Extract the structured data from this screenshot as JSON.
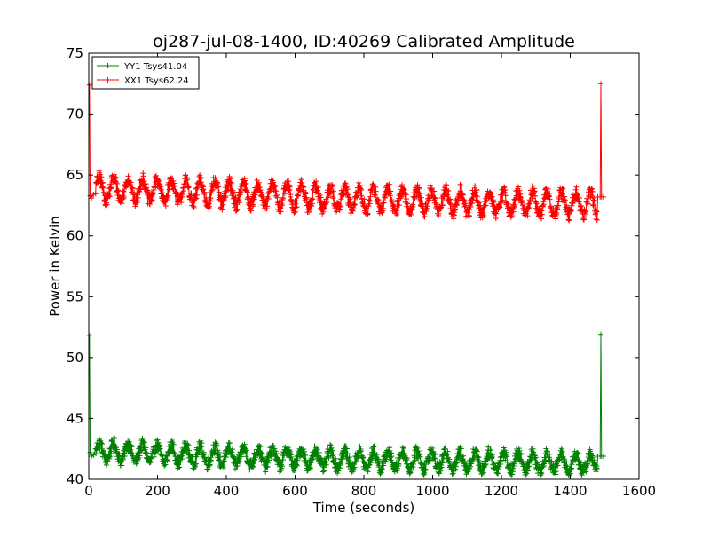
{
  "chart_data": {
    "type": "line",
    "title": "oj287-jul-08-1400, ID:40269 Calibrated Amplitude",
    "xlabel": "Time (seconds)",
    "ylabel": "Power in Kelvin",
    "xlim": [
      0,
      1600
    ],
    "ylim": [
      40,
      75
    ],
    "x_ticks": [
      0,
      200,
      400,
      600,
      800,
      1000,
      1200,
      1400,
      1600
    ],
    "y_ticks": [
      40,
      45,
      50,
      55,
      60,
      65,
      70,
      75
    ],
    "grid": false,
    "legend_position": "top-left",
    "marker": "plus",
    "series": [
      {
        "name": "YY1 Tsys41.04",
        "color": "#008000",
        "oscillation_period": 42,
        "oscillation_half_amplitude": 0.7,
        "noise_half_width": 0.5,
        "oscillation_start": 20,
        "oscillation_end": 1478,
        "baseline": [
          {
            "x": 20,
            "y": 42.3
          },
          {
            "x": 400,
            "y": 41.9
          },
          {
            "x": 800,
            "y": 41.6
          },
          {
            "x": 1200,
            "y": 41.5
          },
          {
            "x": 1478,
            "y": 41.3
          }
        ],
        "start_points": [
          {
            "x": 2,
            "y": 51.8
          },
          {
            "x": 4,
            "y": 42.2
          },
          {
            "x": 8,
            "y": 41.9
          },
          {
            "x": 14,
            "y": 42.0
          }
        ],
        "end_points": [
          {
            "x": 1480,
            "y": 41.9
          },
          {
            "x": 1487,
            "y": 41.9
          },
          {
            "x": 1489,
            "y": 51.9
          },
          {
            "x": 1491,
            "y": 41.9
          },
          {
            "x": 1497,
            "y": 41.9
          }
        ]
      },
      {
        "name": "XX1 Tsys62.24",
        "color": "#ff0000",
        "oscillation_period": 42,
        "oscillation_half_amplitude": 0.9,
        "noise_half_width": 0.55,
        "oscillation_start": 20,
        "oscillation_end": 1478,
        "baseline": [
          {
            "x": 20,
            "y": 63.9
          },
          {
            "x": 400,
            "y": 63.5
          },
          {
            "x": 800,
            "y": 63.0
          },
          {
            "x": 1200,
            "y": 62.7
          },
          {
            "x": 1478,
            "y": 62.6
          }
        ],
        "start_points": [
          {
            "x": 2,
            "y": 72.4
          },
          {
            "x": 4,
            "y": 63.3
          },
          {
            "x": 8,
            "y": 63.1
          },
          {
            "x": 14,
            "y": 63.4
          }
        ],
        "end_points": [
          {
            "x": 1480,
            "y": 63.2
          },
          {
            "x": 1487,
            "y": 63.2
          },
          {
            "x": 1489,
            "y": 72.5
          },
          {
            "x": 1491,
            "y": 63.2
          },
          {
            "x": 1497,
            "y": 63.2
          }
        ]
      }
    ]
  }
}
